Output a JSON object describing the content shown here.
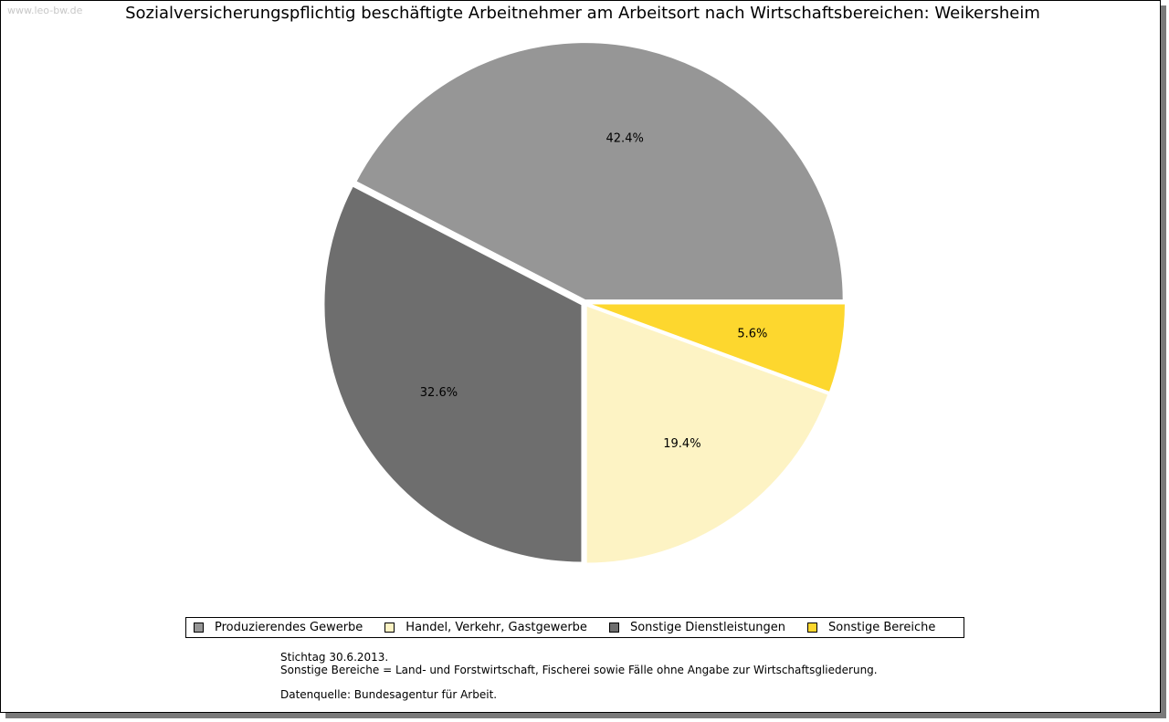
{
  "watermark": "www.leo-bw.de",
  "chart_data": {
    "type": "pie",
    "title": "Sozialversicherungspflichtig beschäftigte Arbeitnehmer am Arbeitsort nach Wirtschaftsbereichen: Weikersheim",
    "slices": [
      {
        "name": "Produzierendes Gewerbe",
        "value": 42.4,
        "label": "42.4%",
        "color": "#969696"
      },
      {
        "name": "Sonstige Dienstleistungen",
        "value": 32.6,
        "label": "32.6%",
        "color": "#6e6e6e"
      },
      {
        "name": "Handel, Verkehr, Gastgewerbe",
        "value": 19.4,
        "label": "19.4%",
        "color": "#fdf3c4"
      },
      {
        "name": "Sonstige Bereiche",
        "value": 5.6,
        "label": "5.6%",
        "color": "#fdd72e"
      }
    ],
    "legend_order": [
      0,
      2,
      1,
      3
    ],
    "legend_placement": "bottom"
  },
  "notes": {
    "line1": "Stichtag 30.6.2013.",
    "line2": "Sonstige Bereiche = Land- und Forstwirtschaft, Fischerei sowie Fälle ohne Angabe zur Wirtschaftsgliederung.",
    "line3": "Datenquelle: Bundesagentur für Arbeit."
  }
}
